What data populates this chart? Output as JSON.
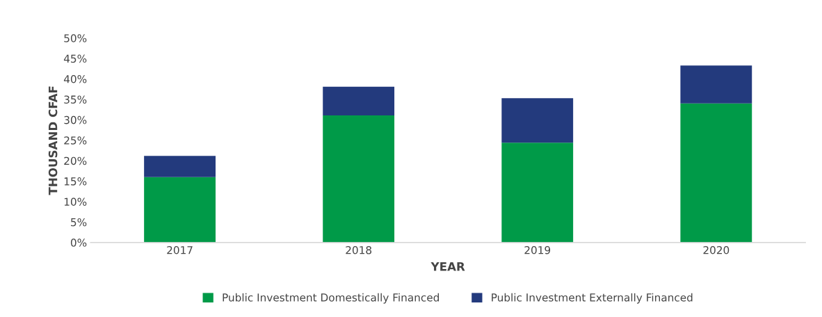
{
  "chart_data": {
    "type": "bar",
    "stacked": true,
    "xlabel": "YEAR",
    "ylabel": "THOUSAND CFAF",
    "categories": [
      "2017",
      "2018",
      "2019",
      "2020"
    ],
    "series": [
      {
        "name": "Public Investment Domestically Financed",
        "color": "#009a48",
        "values": [
          16,
          31.1,
          24.4,
          34
        ]
      },
      {
        "name": "Public Investment Externally Financed",
        "color": "#233a7d",
        "values": [
          5.2,
          7,
          10.9,
          9.3
        ]
      }
    ],
    "ylim": [
      0,
      50
    ],
    "yticks": [
      {
        "value": 0,
        "label": "0%"
      },
      {
        "value": 5,
        "label": "5%"
      },
      {
        "value": 10,
        "label": "10%"
      },
      {
        "value": 15,
        "label": "15%"
      },
      {
        "value": 20,
        "label": "20%"
      },
      {
        "value": 25,
        "label": "25%"
      },
      {
        "value": 30,
        "label": "30%"
      },
      {
        "value": 35,
        "label": "35%"
      },
      {
        "value": 40,
        "label": "40%"
      },
      {
        "value": 45,
        "label": "45%"
      },
      {
        "value": 50,
        "label": "50%"
      }
    ],
    "grid": false,
    "legend": "bottom"
  }
}
